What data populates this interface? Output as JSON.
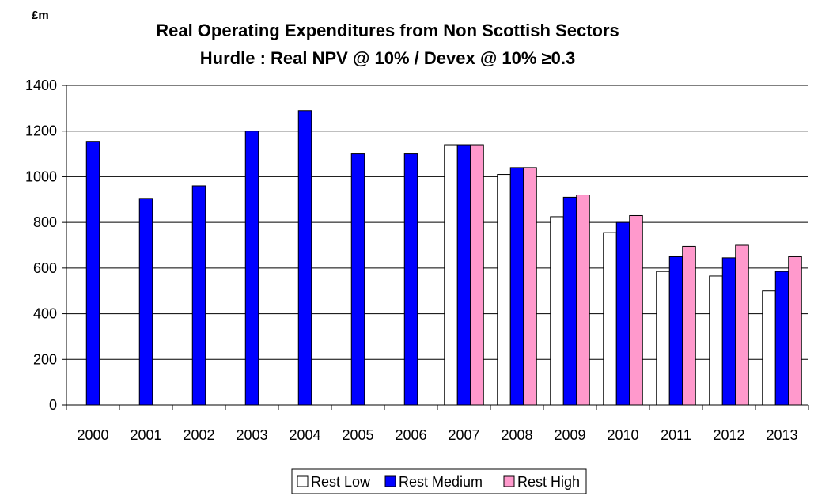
{
  "chart_data": {
    "type": "bar",
    "title": "Real Operating Expenditures from Non Scottish Sectors",
    "subtitle": "Hurdle : Real NPV @ 10% / Devex @ 10% ≥0.3",
    "unit_label": "£m",
    "xlabel": "",
    "ylabel": "",
    "ylim": [
      0,
      1400
    ],
    "yticks": [
      0,
      200,
      400,
      600,
      800,
      1000,
      1200,
      1400
    ],
    "grid": true,
    "legend_position": "bottom",
    "categories": [
      "2000",
      "2001",
      "2002",
      "2003",
      "2004",
      "2005",
      "2006",
      "2007",
      "2008",
      "2009",
      "2010",
      "2011",
      "2012",
      "2013"
    ],
    "series": [
      {
        "name": "Rest Low",
        "color": "#ffffff",
        "values": [
          null,
          null,
          null,
          null,
          null,
          null,
          null,
          1140,
          1010,
          825,
          755,
          585,
          565,
          500
        ]
      },
      {
        "name": "Rest Medium",
        "color": "#0000ff",
        "values": [
          1155,
          905,
          960,
          1200,
          1290,
          1100,
          1100,
          1140,
          1040,
          910,
          800,
          650,
          645,
          585
        ]
      },
      {
        "name": "Rest High",
        "color": "#ff99cc",
        "values": [
          null,
          null,
          null,
          null,
          null,
          null,
          null,
          1140,
          1040,
          920,
          830,
          695,
          700,
          650
        ]
      }
    ]
  }
}
